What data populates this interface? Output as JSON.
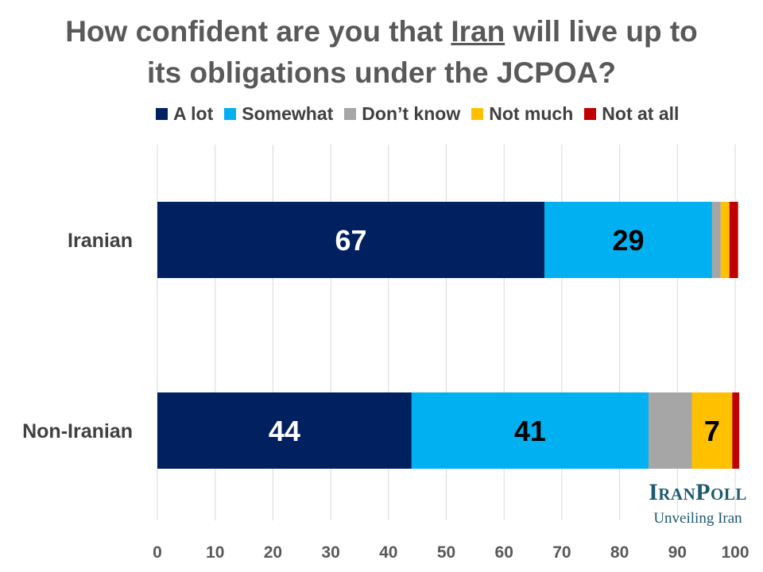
{
  "title": {
    "part1": "How confident are you that ",
    "underlined": "Iran",
    "part2": " will live up to its obligations under the JCPOA?"
  },
  "logo": {
    "name": "IranPoll",
    "tagline": "Unveiling Iran"
  },
  "chart_data": {
    "type": "bar",
    "orientation": "horizontal",
    "stacked": true,
    "categories": [
      "Iranian",
      "Non-Iranian"
    ],
    "series": [
      {
        "name": "A lot",
        "color": "#002060",
        "values": [
          67,
          44
        ],
        "labels": [
          "67",
          "44"
        ]
      },
      {
        "name": "Somewhat",
        "color": "#00B0F0",
        "values": [
          29,
          41
        ],
        "labels": [
          "29",
          "41"
        ]
      },
      {
        "name": "Don’t know",
        "color": "#A6A6A6",
        "values": [
          1.5,
          7.5
        ],
        "labels": [
          "",
          ""
        ]
      },
      {
        "name": "Not much",
        "color": "#FFC000",
        "values": [
          1.5,
          7
        ],
        "labels": [
          "",
          "7"
        ]
      },
      {
        "name": "Not at all",
        "color": "#C00000",
        "values": [
          1.5,
          1.2
        ],
        "labels": [
          "",
          ""
        ]
      }
    ],
    "xlim": [
      0,
      100
    ],
    "xticks": [
      0,
      10,
      20,
      30,
      40,
      50,
      60,
      70,
      80,
      90,
      100
    ],
    "grid": true,
    "legend": "top"
  }
}
